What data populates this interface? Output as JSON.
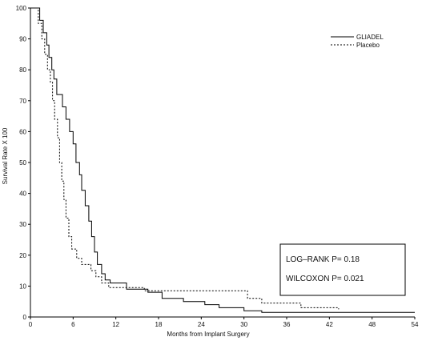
{
  "chart_data": {
    "type": "line",
    "xlabel": "Months from Implant Surgery",
    "ylabel": "Survival Rate X 100",
    "xlim": [
      0,
      54
    ],
    "ylim": [
      0,
      100
    ],
    "x_ticks": [
      0,
      6,
      12,
      18,
      24,
      30,
      36,
      42,
      48,
      54
    ],
    "y_ticks": [
      0,
      10,
      20,
      30,
      40,
      50,
      60,
      70,
      80,
      90,
      100
    ],
    "grid": false,
    "legend_position": "top-right",
    "series": [
      {
        "name": "GLIADEL",
        "style": "solid",
        "color": "#000000",
        "points": [
          [
            0,
            100
          ],
          [
            1.3,
            100
          ],
          [
            1.3,
            96
          ],
          [
            1.8,
            96
          ],
          [
            1.8,
            92
          ],
          [
            2.3,
            92
          ],
          [
            2.3,
            88
          ],
          [
            2.6,
            88
          ],
          [
            2.6,
            84
          ],
          [
            3.0,
            84
          ],
          [
            3.0,
            80
          ],
          [
            3.3,
            80
          ],
          [
            3.3,
            77
          ],
          [
            3.7,
            77
          ],
          [
            3.7,
            72
          ],
          [
            4.5,
            72
          ],
          [
            4.5,
            68
          ],
          [
            5.0,
            68
          ],
          [
            5.0,
            64
          ],
          [
            5.5,
            64
          ],
          [
            5.5,
            60
          ],
          [
            6.0,
            60
          ],
          [
            6.0,
            56
          ],
          [
            6.4,
            56
          ],
          [
            6.4,
            50
          ],
          [
            6.9,
            50
          ],
          [
            6.9,
            46
          ],
          [
            7.2,
            46
          ],
          [
            7.2,
            41
          ],
          [
            7.7,
            41
          ],
          [
            7.7,
            36
          ],
          [
            8.2,
            36
          ],
          [
            8.2,
            31
          ],
          [
            8.6,
            31
          ],
          [
            8.6,
            26
          ],
          [
            9.0,
            26
          ],
          [
            9.0,
            21
          ],
          [
            9.4,
            21
          ],
          [
            9.4,
            17
          ],
          [
            10.0,
            17
          ],
          [
            10.0,
            14
          ],
          [
            10.5,
            14
          ],
          [
            10.5,
            12
          ],
          [
            11.2,
            12
          ],
          [
            11.2,
            11
          ],
          [
            13.5,
            11
          ],
          [
            13.5,
            9
          ],
          [
            16.5,
            9
          ],
          [
            16.5,
            8
          ],
          [
            18.5,
            8
          ],
          [
            18.5,
            6
          ],
          [
            21.5,
            6
          ],
          [
            21.5,
            5
          ],
          [
            24.5,
            5
          ],
          [
            24.5,
            4
          ],
          [
            26.5,
            4
          ],
          [
            26.5,
            3
          ],
          [
            30.0,
            3
          ],
          [
            30.0,
            2
          ],
          [
            32.5,
            2
          ],
          [
            32.5,
            1.5
          ],
          [
            54,
            1.5
          ]
        ]
      },
      {
        "name": "Placebo",
        "style": "dashed",
        "color": "#000000",
        "points": [
          [
            0,
            100
          ],
          [
            1.1,
            100
          ],
          [
            1.1,
            95
          ],
          [
            1.6,
            95
          ],
          [
            1.6,
            90
          ],
          [
            2.0,
            90
          ],
          [
            2.0,
            85
          ],
          [
            2.4,
            85
          ],
          [
            2.4,
            80
          ],
          [
            2.8,
            80
          ],
          [
            2.8,
            76
          ],
          [
            3.1,
            76
          ],
          [
            3.1,
            70
          ],
          [
            3.4,
            70
          ],
          [
            3.4,
            64
          ],
          [
            3.8,
            64
          ],
          [
            3.8,
            58
          ],
          [
            4.1,
            58
          ],
          [
            4.1,
            50
          ],
          [
            4.4,
            50
          ],
          [
            4.4,
            44
          ],
          [
            4.7,
            44
          ],
          [
            4.7,
            38
          ],
          [
            5.0,
            38
          ],
          [
            5.0,
            32
          ],
          [
            5.4,
            32
          ],
          [
            5.4,
            26
          ],
          [
            5.8,
            26
          ],
          [
            5.8,
            22
          ],
          [
            6.5,
            22
          ],
          [
            6.5,
            19
          ],
          [
            7.2,
            19
          ],
          [
            7.2,
            17
          ],
          [
            8.5,
            17
          ],
          [
            8.5,
            15
          ],
          [
            9.2,
            15
          ],
          [
            9.2,
            13
          ],
          [
            10.0,
            13
          ],
          [
            10.0,
            11
          ],
          [
            11.0,
            11
          ],
          [
            11.0,
            9.5
          ],
          [
            16.0,
            9.5
          ],
          [
            16.0,
            8.5
          ],
          [
            30.5,
            8.5
          ],
          [
            30.5,
            6
          ],
          [
            32.5,
            6
          ],
          [
            32.5,
            4.5
          ],
          [
            38.0,
            4.5
          ],
          [
            38.0,
            3
          ],
          [
            43.3,
            3
          ],
          [
            43.3,
            2.5
          ]
        ]
      }
    ],
    "annotations": [
      "LOG–RANK P= 0.18",
      "WILCOXON P= 0.021"
    ]
  },
  "legend": {
    "items": [
      "GLIADEL",
      "Placebo"
    ]
  },
  "stats_box": {
    "line1": "LOG–RANK P= 0.18",
    "line2": "WILCOXON P= 0.021"
  }
}
